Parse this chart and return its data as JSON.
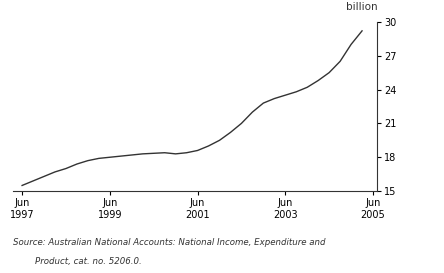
{
  "ylabel_right": "billion",
  "source_line1": "Source: Australian National Accounts: National Income, Expenditure and",
  "source_line2": "        Product, cat. no. 5206.0.",
  "line_color": "#333333",
  "background_color": "#ffffff",
  "ylim": [
    15,
    30
  ],
  "yticks": [
    15,
    18,
    21,
    24,
    27,
    30
  ],
  "xtick_years": [
    1997,
    1999,
    2001,
    2003,
    2005
  ],
  "x_data": [
    1997.5,
    1997.75,
    1998.0,
    1998.25,
    1998.5,
    1998.75,
    1999.0,
    1999.25,
    1999.5,
    1999.75,
    2000.0,
    2000.25,
    2000.5,
    2000.75,
    2001.0,
    2001.25,
    2001.5,
    2001.75,
    2002.0,
    2002.25,
    2002.5,
    2002.75,
    2003.0,
    2003.25,
    2003.5,
    2003.75,
    2004.0,
    2004.25,
    2004.5,
    2004.75,
    2005.0,
    2005.25
  ],
  "y_data": [
    15.5,
    15.9,
    16.3,
    16.7,
    17.0,
    17.4,
    17.7,
    17.9,
    18.0,
    18.1,
    18.2,
    18.3,
    18.35,
    18.4,
    18.3,
    18.4,
    18.6,
    19.0,
    19.5,
    20.2,
    21.0,
    22.0,
    22.8,
    23.2,
    23.5,
    23.8,
    24.2,
    24.8,
    25.5,
    26.5,
    28.0,
    29.2
  ]
}
